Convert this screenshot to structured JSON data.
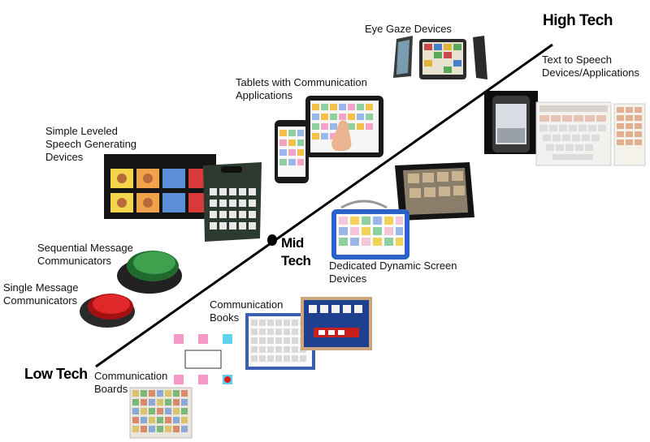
{
  "tiers": {
    "low": "Low Tech",
    "mid_line1": "Mid",
    "mid_line2": "Tech",
    "high": "High Tech"
  },
  "categories": {
    "eye_gaze": "Eye Gaze Devices",
    "text_to_speech_1": "Text to Speech",
    "text_to_speech_2": "Devices/Applications",
    "tablets_1": "Tablets with Communication",
    "tablets_2": "Applications",
    "simple_leveled_1": "Simple Leveled",
    "simple_leveled_2": "Speech Generating",
    "simple_leveled_3": "Devices",
    "sequential_1": "Sequential Message",
    "sequential_2": "Communicators",
    "single_1": "Single Message",
    "single_2": "Communicators",
    "dedicated_1": "Dedicated Dynamic Screen",
    "dedicated_2": "Devices",
    "books_1": "Communication",
    "books_2": "Books",
    "boards_1": "Communication",
    "boards_2": "Boards"
  },
  "colors": {
    "axis": "#000000",
    "button_red": "#d81818",
    "button_green": "#2f8a3a",
    "device_dark": "#1c1c1c",
    "blue_case": "#2a62c9",
    "pink_tile": "#f49ac8",
    "cyan_tile": "#5fd1e8"
  }
}
